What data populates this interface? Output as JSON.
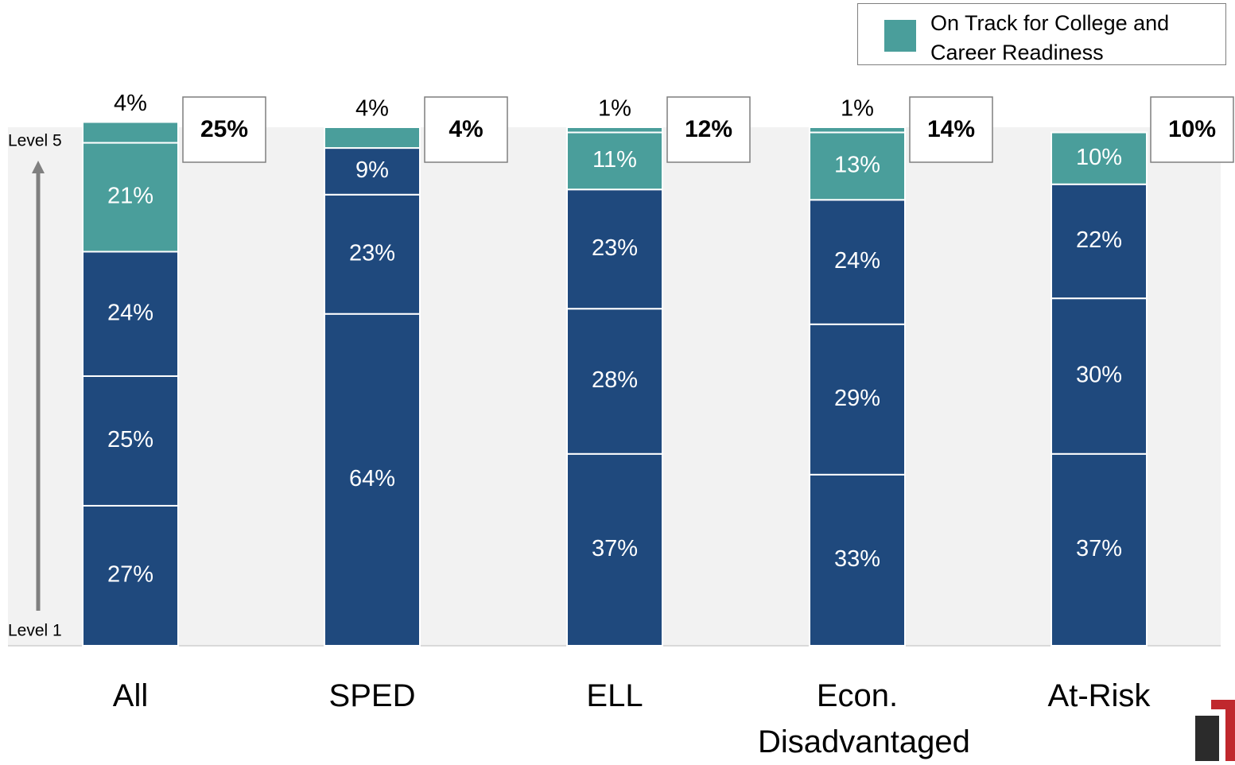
{
  "chart_data": {
    "type": "stacked-bar",
    "categories": [
      "All",
      "SPED",
      "ELL",
      "Econ. Disadvantaged",
      "At-Risk"
    ],
    "series": [
      {
        "color": "#1f497d",
        "values": [
          27,
          64,
          37,
          33,
          37
        ],
        "value_labels": [
          "27%",
          "64%",
          "37%",
          "33%",
          "37%"
        ]
      },
      {
        "color": "#1f497d",
        "values": [
          25,
          23,
          28,
          29,
          30
        ],
        "value_labels": [
          "25%",
          "23%",
          "28%",
          "29%",
          "30%"
        ]
      },
      {
        "color": "#1f497d",
        "values": [
          24,
          9,
          23,
          24,
          22
        ],
        "value_labels": [
          "24%",
          "9%",
          "23%",
          "24%",
          "22%"
        ]
      },
      {
        "color": "#4a9e9b",
        "values": [
          21,
          null,
          11,
          13,
          10
        ],
        "value_labels": [
          "21%",
          null,
          "11%",
          "13%",
          "10%"
        ]
      },
      {
        "color": "#4a9e9b",
        "values": [
          4,
          4,
          1,
          1,
          null
        ],
        "value_labels": [
          "4%",
          "4%",
          "1%",
          "1%",
          null
        ]
      }
    ],
    "totals": {
      "values": [
        25,
        4,
        12,
        14,
        10
      ],
      "value_labels": [
        "25%",
        "4%",
        "12%",
        "14%",
        "10%"
      ]
    },
    "legend": {
      "label": "On Track for College and Career Readiness",
      "color": "#4a9e9b",
      "position": "top-right"
    },
    "axis_labels": {
      "top": "Level 5",
      "bottom": "Level 1"
    },
    "ylim": [
      0,
      100
    ]
  }
}
